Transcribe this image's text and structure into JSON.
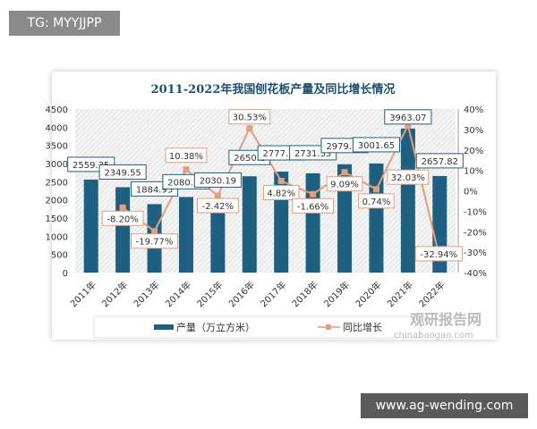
{
  "watermark_top": "TG: MYYJJPP",
  "watermark_bottom": "www.ag-wending.com",
  "source_logo": {
    "cn": "观研报告网",
    "en": "chinabaogao.com"
  },
  "chart_data": {
    "type": "bar+line",
    "title": "2011-2022年我国刨花板产量及同比增长情况",
    "categories": [
      "2011年",
      "2012年",
      "2013年",
      "2014年",
      "2015年",
      "2016年",
      "2017年",
      "2018年",
      "2019年",
      "2020年",
      "2021年",
      "2022年"
    ],
    "series": [
      {
        "name": "产量（万立方米）",
        "type": "bar",
        "axis": "left",
        "color": "#1f5f7f",
        "values": [
          2559.35,
          2349.55,
          1884.95,
          2080.53,
          2030.19,
          2650.1,
          2777.77,
          2731.53,
          2979.73,
          3001.65,
          3963.07,
          2657.82
        ],
        "labels": [
          "2559.35",
          "2349.55",
          "1884.95",
          "2080.53",
          "2030.19",
          "2650.1",
          "2777.77",
          "2731.53",
          "2979.73",
          "3001.65",
          "3963.07",
          "2657.82"
        ]
      },
      {
        "name": "同比增长",
        "type": "line",
        "axis": "right",
        "color": "#e0a080",
        "values": [
          null,
          -8.2,
          -19.77,
          10.38,
          -2.42,
          30.53,
          4.82,
          -1.66,
          9.09,
          0.74,
          32.03,
          -32.94
        ],
        "labels": [
          "",
          "-8.20%",
          "-19.77%",
          "10.38%",
          "-2.42%",
          "30.53%",
          "4.82%",
          "-1.66%",
          "9.09%",
          "0.74%",
          "32.03%",
          "-32.94%"
        ]
      }
    ],
    "y_left": {
      "min": 0,
      "max": 4500,
      "ticks": [
        "0",
        "500",
        "1000",
        "1500",
        "2000",
        "2500",
        "3000",
        "3500",
        "4000",
        "4500"
      ]
    },
    "y_right": {
      "min": -40,
      "max": 40,
      "ticks": [
        "-40%",
        "-30%",
        "-20%",
        "-10%",
        "0%",
        "10%",
        "20%",
        "30%",
        "40%"
      ]
    },
    "legend": "bottom",
    "grid": false
  }
}
